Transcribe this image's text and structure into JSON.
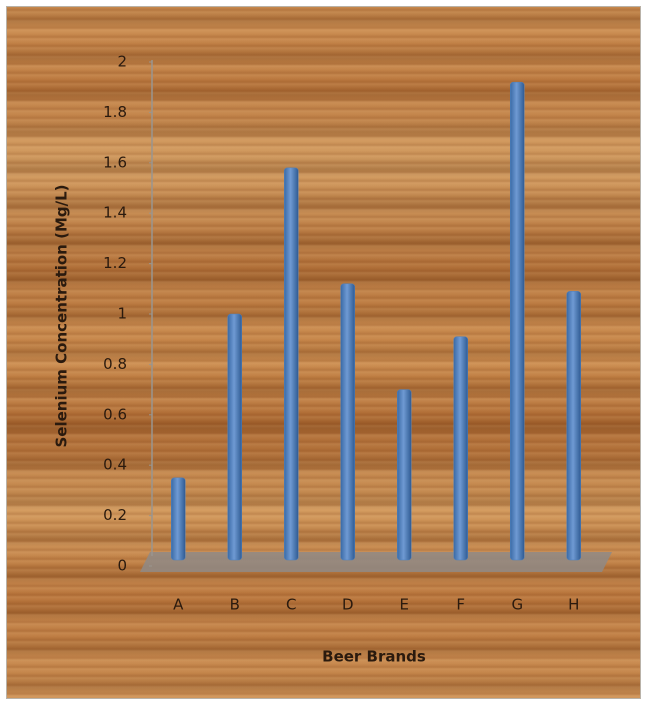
{
  "chart_data": {
    "type": "bar",
    "x_label": "Beer Brands",
    "y_label": "Selenium Concentration  (Mg/L)",
    "categories": [
      "A",
      "B",
      "C",
      "D",
      "E",
      "F",
      "G",
      "H"
    ],
    "values": [
      0.35,
      1.0,
      1.58,
      1.12,
      0.7,
      0.91,
      1.92,
      1.09
    ],
    "color": "#4f81bd",
    "ylim": [
      0,
      2
    ],
    "yticks": [
      0,
      0.2,
      0.4,
      0.6,
      0.8,
      1,
      1.2,
      1.4,
      1.6,
      1.8,
      2
    ],
    "grid": false
  }
}
